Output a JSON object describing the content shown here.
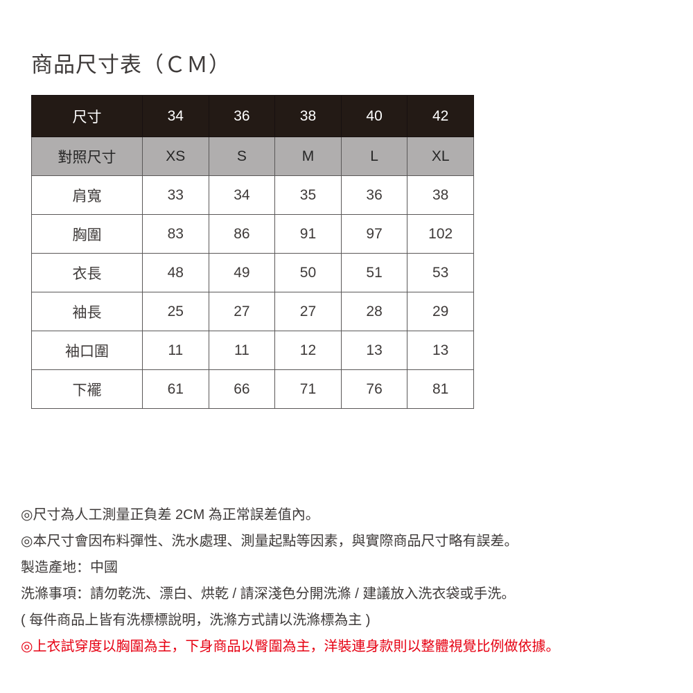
{
  "page": {
    "title": "商品尺寸表（ＣＭ）"
  },
  "size_table": {
    "size_row": {
      "label": "尺寸",
      "values": [
        "34",
        "36",
        "38",
        "40",
        "42"
      ]
    },
    "compare_row": {
      "label": "對照尺寸",
      "values": [
        "XS",
        "S",
        "M",
        "L",
        "XL"
      ]
    },
    "measure_rows": [
      {
        "label": "肩寬",
        "values": [
          "33",
          "34",
          "35",
          "36",
          "38"
        ]
      },
      {
        "label": "胸圍",
        "values": [
          "83",
          "86",
          "91",
          "97",
          "102"
        ]
      },
      {
        "label": "衣長",
        "values": [
          "48",
          "49",
          "50",
          "51",
          "53"
        ]
      },
      {
        "label": "袖長",
        "values": [
          "25",
          "27",
          "27",
          "28",
          "29"
        ]
      },
      {
        "label": "袖口圍",
        "values": [
          "11",
          "11",
          "12",
          "13",
          "13"
        ]
      },
      {
        "label": "下襬",
        "values": [
          "61",
          "66",
          "71",
          "76",
          "81"
        ]
      }
    ]
  },
  "notes": {
    "lines": [
      "◎尺寸為人工測量正負差 2CM 為正常誤差值內。",
      "◎本尺寸會因布料彈性、洗水處理、測量起點等因素，與實際商品尺寸略有誤差。",
      "製造產地：中國",
      "洗滌事項：請勿乾洗、漂白、烘乾 / 請深淺色分開洗滌 / 建議放入洗衣袋或手洗。",
      "( 每件商品上皆有洗標標說明，洗滌方式請以洗滌標為主 )",
      "◎上衣試穿度以胸圍為主，下身商品以臀圍為主，洋裝連身款則以整體視覺比例做依據。"
    ]
  },
  "colors": {
    "header_bg": "#231a15",
    "header_text": "#ffffff",
    "subheader_bg": "#b0aeae",
    "body_text": "#3e3a39",
    "border": "#595757",
    "note_red": "#e60012"
  }
}
